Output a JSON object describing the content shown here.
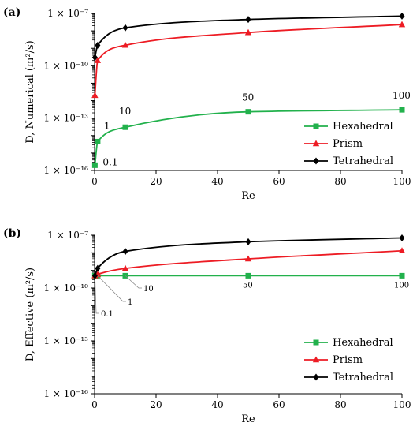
{
  "chart_data": [
    {
      "type": "line",
      "panel_label": "(a)",
      "xlabel": "Re",
      "ylabel": "D, Numerical  (m²/s)",
      "x_range": [
        0,
        100
      ],
      "x_ticks": [
        "0",
        "20",
        "40",
        "60",
        "80",
        "100"
      ],
      "y_scale": "log",
      "y_range": [
        1e-16,
        1e-07
      ],
      "y_ticks": [
        "1 × 10⁻¹⁶",
        "1 × 10⁻¹³",
        "1 × 10⁻¹⁰",
        "1 × 10⁻⁷"
      ],
      "grid": false,
      "legend": "bottom-right",
      "series": [
        {
          "name": "Hexahedral",
          "color": "#22b14c",
          "marker": "square",
          "x": [
            0.1,
            1,
            10,
            50,
            100
          ],
          "y": [
            2e-16,
            4.5e-15,
            3e-14,
            2.3e-13,
            3e-13
          ]
        },
        {
          "name": "Prism",
          "color": "#ed1c24",
          "marker": "triangle",
          "x": [
            0.1,
            1,
            10,
            50,
            100
          ],
          "y": [
            2e-12,
            2e-10,
            1.5e-09,
            8e-09,
            2.3e-08
          ]
        },
        {
          "name": "Tetrahedral",
          "color": "#000000",
          "marker": "diamond",
          "x": [
            0.1,
            1,
            10,
            50,
            100
          ],
          "y": [
            3e-10,
            1.5e-09,
            1.5e-08,
            4.5e-08,
            7e-08
          ]
        }
      ],
      "annotations": [
        {
          "text": "0.1"
        },
        {
          "text": "1"
        },
        {
          "text": "10"
        },
        {
          "text": "50"
        },
        {
          "text": "100"
        }
      ]
    },
    {
      "type": "line",
      "panel_label": "(b)",
      "xlabel": "Re",
      "ylabel": "D, Effective  (m²/s)",
      "x_range": [
        0,
        100
      ],
      "x_ticks": [
        "0",
        "20",
        "40",
        "60",
        "80",
        "100"
      ],
      "y_scale": "log",
      "y_range": [
        1e-16,
        1e-07
      ],
      "y_ticks": [
        "1 × 10⁻¹⁶",
        "1 × 10⁻¹³",
        "1 × 10⁻¹⁰",
        "1 × 10⁻⁷"
      ],
      "grid": false,
      "legend": "bottom-right",
      "series": [
        {
          "name": "Hexahedral",
          "color": "#22b14c",
          "marker": "square",
          "x": [
            0.1,
            1,
            10,
            50,
            100
          ],
          "y": [
            5e-10,
            5e-10,
            5e-10,
            5e-10,
            5e-10
          ]
        },
        {
          "name": "Prism",
          "color": "#ed1c24",
          "marker": "triangle",
          "x": [
            0.1,
            1,
            10,
            50,
            100
          ],
          "y": [
            5e-10,
            6e-10,
            1.3e-09,
            4.5e-09,
            1.3e-08
          ]
        },
        {
          "name": "Tetrahedral",
          "color": "#000000",
          "marker": "diamond",
          "x": [
            0.1,
            1,
            10,
            50,
            100
          ],
          "y": [
            5e-10,
            1.3e-09,
            1.2e-08,
            4.2e-08,
            7e-08
          ]
        }
      ],
      "annotations": [
        {
          "text": "0.1"
        },
        {
          "text": "1"
        },
        {
          "text": "10"
        },
        {
          "text": "50"
        },
        {
          "text": "100"
        }
      ]
    }
  ]
}
